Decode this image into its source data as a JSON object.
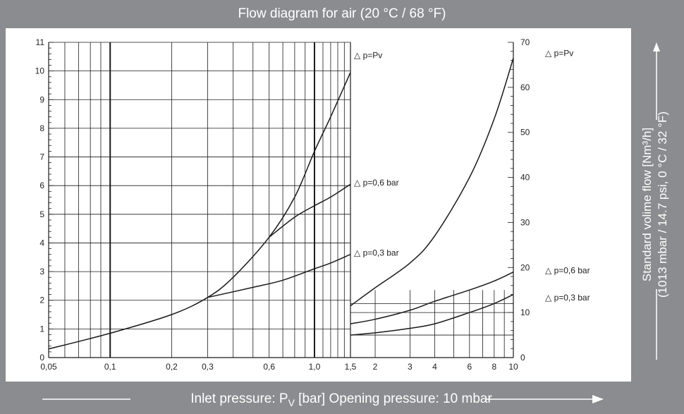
{
  "title": "Flow diagram for air (20 °C / 68 °F)",
  "footer": {
    "xlabel_main": "Inlet pressure: P",
    "xlabel_sub": "V",
    "xlabel_rest": " [bar] Opening pressure: 10 mbar"
  },
  "side": {
    "ylabel_line1": "Standard volime flow [Nm³/h]",
    "ylabel_line2": "(1013 mbar / 14.7 psi, 0 °C / 32 °F)"
  },
  "colors": {
    "frame": "#8a8c8f",
    "plot_bg": "#ffffff",
    "line": "#1a1a1a",
    "text_light": "#ffffff"
  },
  "chart_data": [
    {
      "type": "line",
      "xscale": "log",
      "xlim": [
        0.05,
        1.5
      ],
      "ylim": [
        0,
        11
      ],
      "x_ticks": [
        0.05,
        0.1,
        0.2,
        0.3,
        0.6,
        1.0,
        1.5
      ],
      "x_tick_labels": [
        "0,05",
        "0,1",
        "0,2",
        "0,3",
        "0,6",
        "1,0",
        "1,5"
      ],
      "y_ticks": [
        0,
        1,
        2,
        3,
        4,
        5,
        6,
        7,
        8,
        9,
        10,
        11
      ],
      "y_tick_labels": [
        "0",
        "1",
        "2",
        "3",
        "4",
        "5",
        "6",
        "7",
        "8",
        "9",
        "10",
        "11"
      ],
      "grid": true,
      "series": [
        {
          "name": "△ p=Pv",
          "x": [
            0.05,
            0.1,
            0.2,
            0.3,
            0.4,
            0.6,
            0.8,
            1.0,
            1.2,
            1.5
          ],
          "y": [
            0.3,
            0.85,
            1.5,
            2.1,
            2.8,
            4.2,
            5.6,
            7.2,
            8.4,
            9.95
          ]
        },
        {
          "name": "△ p=0,6 bar",
          "x": [
            0.6,
            0.8,
            1.0,
            1.2,
            1.5
          ],
          "y": [
            4.2,
            4.9,
            5.3,
            5.6,
            6.05
          ]
        },
        {
          "name": "△ p=0,3 bar",
          "x": [
            0.3,
            0.5,
            0.7,
            1.0,
            1.2,
            1.5
          ],
          "y": [
            2.1,
            2.45,
            2.7,
            3.1,
            3.3,
            3.6
          ]
        }
      ]
    },
    {
      "type": "line",
      "xscale": "log",
      "xlim": [
        1.5,
        10
      ],
      "ylim": [
        0,
        70
      ],
      "x_ticks": [
        1.5,
        2,
        3,
        4,
        6,
        8,
        10
      ],
      "x_tick_labels": [
        "",
        "2",
        "3",
        "4",
        "6",
        "8",
        "10"
      ],
      "y_ticks": [
        0,
        10,
        20,
        30,
        40,
        50,
        60,
        70
      ],
      "y_tick_labels": [
        "0",
        "10",
        "20",
        "30",
        "40",
        "50",
        "60",
        "70"
      ],
      "grid": true,
      "series": [
        {
          "name": "△ p=Pv",
          "x": [
            1.5,
            2,
            3,
            4,
            6,
            8,
            10
          ],
          "y": [
            11.5,
            15.5,
            21,
            27,
            40,
            53,
            66.5
          ]
        },
        {
          "name": "△ p=0,6 bar",
          "x": [
            1.5,
            2,
            3,
            4,
            6,
            8,
            10
          ],
          "y": [
            7.5,
            8.5,
            10.5,
            12.5,
            15,
            17,
            19
          ]
        },
        {
          "name": "△ p=0,3 bar",
          "x": [
            1.5,
            2,
            3,
            4,
            6,
            8,
            10
          ],
          "y": [
            5,
            5.5,
            6.5,
            7.5,
            10,
            12,
            14
          ]
        }
      ]
    }
  ]
}
